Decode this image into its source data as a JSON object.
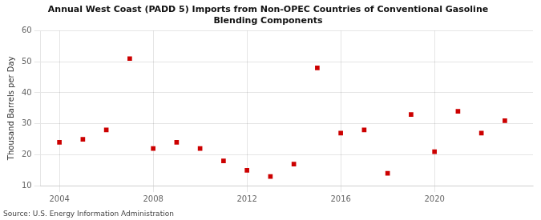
{
  "chart_data": {
    "type": "scatter",
    "title": "Annual West Coast (PADD 5) Imports from Non-OPEC Countries of Conventional Gasoline\nBlending Components",
    "ylabel": "Thousand Barrels per Day",
    "source": "Source: U.S. Energy Information Administration",
    "x": [
      2004,
      2005,
      2006,
      2007,
      2008,
      2009,
      2010,
      2011,
      2012,
      2013,
      2014,
      2015,
      2016,
      2017,
      2018,
      2019,
      2020,
      2021,
      2022,
      2023
    ],
    "values": [
      24,
      25,
      28,
      51,
      22,
      24,
      22,
      18,
      15,
      13,
      17,
      48,
      27,
      28,
      14,
      33,
      21,
      34,
      27,
      31
    ],
    "color": "#CC0000",
    "marker": "square",
    "xlim": [
      2003.2,
      2024.2
    ],
    "xticks": [
      2004,
      2008,
      2012,
      2016,
      2020
    ],
    "ylim": [
      10,
      60
    ],
    "yticks": [
      10,
      20,
      30,
      40,
      50,
      60
    ],
    "grid": true
  }
}
